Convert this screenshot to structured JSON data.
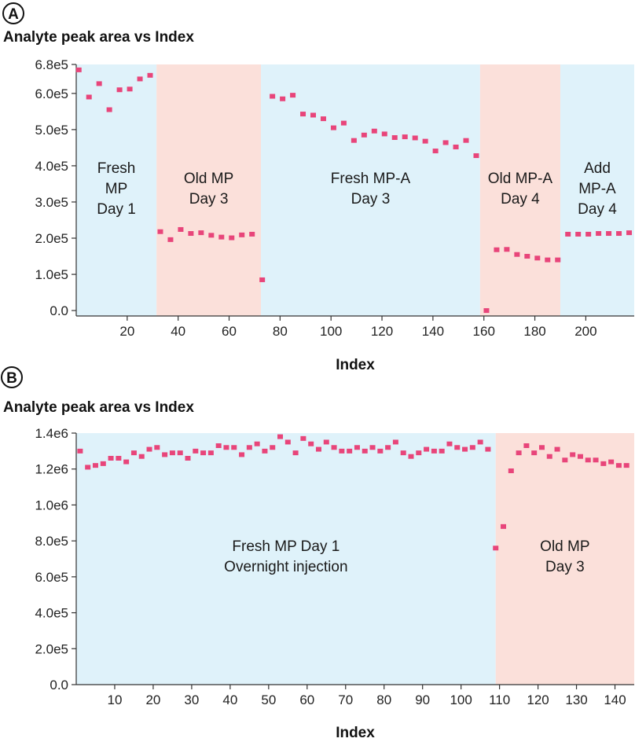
{
  "chart_data": [
    {
      "type": "scatter",
      "panel_label": "A",
      "title": "Analyte peak area vs Index",
      "xlabel": "Index",
      "ylabel": "",
      "xlim": [
        0,
        219
      ],
      "ylim": [
        -15000,
        680000
      ],
      "xticks": [
        20,
        40,
        60,
        80,
        100,
        120,
        140,
        160,
        180,
        200
      ],
      "xtick_labels": [
        "20",
        "40",
        "60",
        "80",
        "100",
        "120",
        "140",
        "160",
        "180",
        "200"
      ],
      "yticks": [
        0,
        100000,
        200000,
        300000,
        400000,
        500000,
        600000,
        680000
      ],
      "ytick_labels": [
        "0.0",
        "1.0e5",
        "2.0e5",
        "3.0e5",
        "4.0e5",
        "5.0e5",
        "6.0e5",
        "6.8e5"
      ],
      "marker_color": "#e8457a",
      "regions": [
        {
          "x_start": 0,
          "x_end": 31.5,
          "color": "#dff2fa",
          "lines": [
            "Fresh",
            "MP",
            "Day 1"
          ]
        },
        {
          "x_start": 31.5,
          "x_end": 72.5,
          "color": "#fbe0da",
          "lines": [
            "Old MP",
            "Day 3"
          ]
        },
        {
          "x_start": 72.5,
          "x_end": 158.5,
          "color": "#dff2fa",
          "lines": [
            "Fresh MP-A",
            "Day 3"
          ]
        },
        {
          "x_start": 158.5,
          "x_end": 190,
          "color": "#fbe0da",
          "lines": [
            "Old MP-A",
            "Day 4"
          ]
        },
        {
          "x_start": 190,
          "x_end": 219,
          "color": "#dff2fa",
          "lines": [
            "Add",
            "MP-A",
            "Day 4"
          ]
        }
      ],
      "points": {
        "x": [
          1,
          5,
          9,
          13,
          17,
          21,
          25,
          29,
          33,
          37,
          41,
          45,
          49,
          53,
          57,
          61,
          65,
          69,
          73,
          77,
          81,
          85,
          89,
          93,
          97,
          101,
          105,
          109,
          113,
          117,
          121,
          125,
          129,
          133,
          137,
          141,
          145,
          149,
          153,
          157,
          161,
          165,
          169,
          173,
          177,
          181,
          185,
          189,
          193,
          197,
          201,
          205,
          209,
          213,
          217
        ],
        "y": [
          665000,
          590000,
          627000,
          555000,
          610000,
          612000,
          640000,
          650000,
          218000,
          196000,
          224000,
          213000,
          215000,
          208000,
          203000,
          201000,
          209000,
          211000,
          85000,
          592000,
          585000,
          595000,
          543000,
          540000,
          530000,
          505000,
          518000,
          470000,
          485000,
          496000,
          488000,
          478000,
          480000,
          477000,
          468000,
          441000,
          464000,
          452000,
          470000,
          428000,
          0,
          168000,
          169000,
          155000,
          150000,
          145000,
          140000,
          140000,
          211000,
          211000,
          211000,
          213000,
          213000,
          213000,
          215000
        ]
      }
    },
    {
      "type": "scatter",
      "panel_label": "B",
      "title": "Analyte peak area vs Index",
      "xlabel": "Index",
      "ylabel": "",
      "xlim": [
        0,
        145
      ],
      "ylim": [
        0,
        1400000
      ],
      "xticks": [
        10,
        20,
        30,
        40,
        50,
        60,
        70,
        80,
        90,
        100,
        110,
        120,
        130,
        140
      ],
      "xtick_labels": [
        "10",
        "20",
        "30",
        "40",
        "50",
        "60",
        "70",
        "80",
        "90",
        "100",
        "110",
        "120",
        "130",
        "140"
      ],
      "yticks": [
        0,
        200000,
        400000,
        600000,
        800000,
        1000000,
        1200000,
        1400000
      ],
      "ytick_labels": [
        "0.0",
        "2.0e5",
        "4.0e5",
        "6.0e5",
        "8.0e5",
        "1.0e6",
        "1.2e6",
        "1.4e6"
      ],
      "marker_color": "#e8457a",
      "regions": [
        {
          "x_start": 0,
          "x_end": 109,
          "color": "#dff2fa",
          "lines": [
            "Fresh MP Day 1",
            "Overnight injection"
          ]
        },
        {
          "x_start": 109,
          "x_end": 145,
          "color": "#fbe0da",
          "lines": [
            "Old MP",
            "Day 3"
          ]
        }
      ],
      "points": {
        "x": [
          1,
          3,
          5,
          7,
          9,
          11,
          13,
          15,
          17,
          19,
          21,
          23,
          25,
          27,
          29,
          31,
          33,
          35,
          37,
          39,
          41,
          43,
          45,
          47,
          49,
          51,
          53,
          55,
          57,
          59,
          61,
          63,
          65,
          67,
          69,
          71,
          73,
          75,
          77,
          79,
          81,
          83,
          85,
          87,
          89,
          91,
          93,
          95,
          97,
          99,
          101,
          103,
          105,
          107,
          109,
          111,
          113,
          115,
          117,
          119,
          121,
          123,
          125,
          127,
          129,
          131,
          133,
          135,
          137,
          139,
          141,
          143
        ],
        "y": [
          1300000,
          1210000,
          1220000,
          1230000,
          1260000,
          1260000,
          1240000,
          1290000,
          1270000,
          1310000,
          1320000,
          1280000,
          1290000,
          1290000,
          1260000,
          1300000,
          1290000,
          1290000,
          1330000,
          1320000,
          1320000,
          1280000,
          1320000,
          1340000,
          1300000,
          1320000,
          1380000,
          1350000,
          1290000,
          1370000,
          1340000,
          1310000,
          1350000,
          1320000,
          1300000,
          1300000,
          1320000,
          1300000,
          1320000,
          1300000,
          1320000,
          1350000,
          1290000,
          1270000,
          1290000,
          1310000,
          1300000,
          1300000,
          1340000,
          1320000,
          1310000,
          1320000,
          1350000,
          1310000,
          760000,
          880000,
          1190000,
          1290000,
          1330000,
          1290000,
          1320000,
          1270000,
          1310000,
          1250000,
          1280000,
          1270000,
          1250000,
          1250000,
          1230000,
          1240000,
          1220000,
          1220000
        ]
      }
    }
  ]
}
